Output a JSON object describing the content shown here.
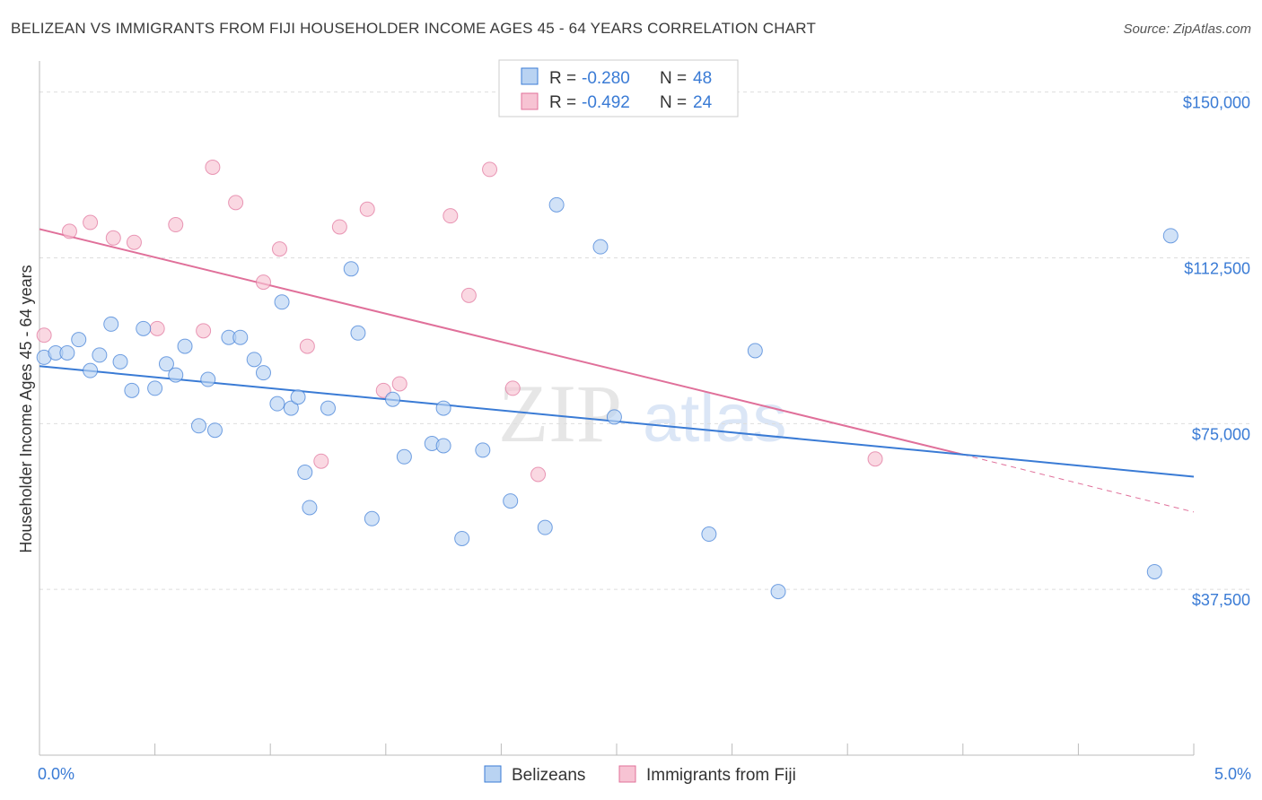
{
  "title": "BELIZEAN VS IMMIGRANTS FROM FIJI HOUSEHOLDER INCOME AGES 45 - 64 YEARS CORRELATION CHART",
  "source": "Source: ZipAtlas.com",
  "watermark": {
    "zip": "ZIP",
    "atlas": "atlas"
  },
  "legend_top": [
    {
      "r_label": "R =",
      "r_value": "-0.280",
      "n_label": "N =",
      "n_value": "48"
    },
    {
      "r_label": "R =",
      "r_value": "-0.492",
      "n_label": "N =",
      "n_value": "24"
    }
  ],
  "legend_bottom": [
    "Belizeans",
    "Immigrants from Fiji"
  ],
  "colors": {
    "blue": "#3a7bd5",
    "blue_fill": "#b9d3f2",
    "pink": "#e0709a",
    "pink_fill": "#f7c3d3",
    "grid": "#dddddd"
  },
  "chart_data": {
    "type": "scatter",
    "ylabel": "Householder Income Ages 45 - 64 years",
    "xlim": [
      0,
      5
    ],
    "ylim": [
      0,
      155000
    ],
    "x_tick_labels": [
      "0.0%",
      "5.0%"
    ],
    "y_ticks": [
      37500,
      75000,
      112500,
      150000
    ],
    "y_tick_labels": [
      "$37,500",
      "$75,000",
      "$112,500",
      "$150,000"
    ],
    "series": [
      {
        "name": "Belizeans",
        "trend": [
          [
            0,
            88000
          ],
          [
            5,
            63000
          ]
        ],
        "points": [
          [
            0.02,
            90000
          ],
          [
            0.07,
            91000
          ],
          [
            0.12,
            91000
          ],
          [
            0.17,
            94000
          ],
          [
            0.22,
            87000
          ],
          [
            0.26,
            90500
          ],
          [
            0.31,
            97500
          ],
          [
            0.35,
            89000
          ],
          [
            0.4,
            82500
          ],
          [
            0.45,
            96500
          ],
          [
            0.5,
            83000
          ],
          [
            0.55,
            88500
          ],
          [
            0.59,
            86000
          ],
          [
            0.63,
            92500
          ],
          [
            0.69,
            74500
          ],
          [
            0.73,
            85000
          ],
          [
            0.76,
            73500
          ],
          [
            0.82,
            94500
          ],
          [
            0.87,
            94500
          ],
          [
            0.93,
            89500
          ],
          [
            0.97,
            86500
          ],
          [
            1.03,
            79500
          ],
          [
            1.05,
            102500
          ],
          [
            1.09,
            78500
          ],
          [
            1.12,
            81000
          ],
          [
            1.15,
            64000
          ],
          [
            1.17,
            56000
          ],
          [
            1.25,
            78500
          ],
          [
            1.35,
            110000
          ],
          [
            1.38,
            95500
          ],
          [
            1.44,
            53500
          ],
          [
            1.53,
            80500
          ],
          [
            1.58,
            67500
          ],
          [
            1.7,
            70500
          ],
          [
            1.75,
            70000
          ],
          [
            1.75,
            78500
          ],
          [
            1.83,
            49000
          ],
          [
            1.92,
            69000
          ],
          [
            2.04,
            57500
          ],
          [
            2.19,
            51500
          ],
          [
            2.24,
            124500
          ],
          [
            2.43,
            115000
          ],
          [
            2.49,
            76500
          ],
          [
            2.9,
            50000
          ],
          [
            3.1,
            91500
          ],
          [
            3.2,
            37000
          ],
          [
            4.83,
            41500
          ],
          [
            4.9,
            117500
          ]
        ]
      },
      {
        "name": "Immigrants from Fiji",
        "trend": [
          [
            0,
            119000
          ],
          [
            4.0,
            68000
          ]
        ],
        "trend_dashed": [
          [
            4.0,
            68000
          ],
          [
            5,
            55000
          ]
        ],
        "points": [
          [
            0.02,
            95000
          ],
          [
            0.13,
            118500
          ],
          [
            0.22,
            120500
          ],
          [
            0.32,
            117000
          ],
          [
            0.41,
            116000
          ],
          [
            0.51,
            96500
          ],
          [
            0.59,
            120000
          ],
          [
            0.71,
            96000
          ],
          [
            0.75,
            133000
          ],
          [
            0.85,
            125000
          ],
          [
            0.97,
            107000
          ],
          [
            1.04,
            114500
          ],
          [
            1.16,
            92500
          ],
          [
            1.22,
            66500
          ],
          [
            1.3,
            119500
          ],
          [
            1.42,
            123500
          ],
          [
            1.49,
            82500
          ],
          [
            1.56,
            84000
          ],
          [
            1.78,
            122000
          ],
          [
            1.86,
            104000
          ],
          [
            1.95,
            132500
          ],
          [
            2.05,
            83000
          ],
          [
            2.16,
            63500
          ],
          [
            3.62,
            67000
          ]
        ]
      }
    ]
  }
}
